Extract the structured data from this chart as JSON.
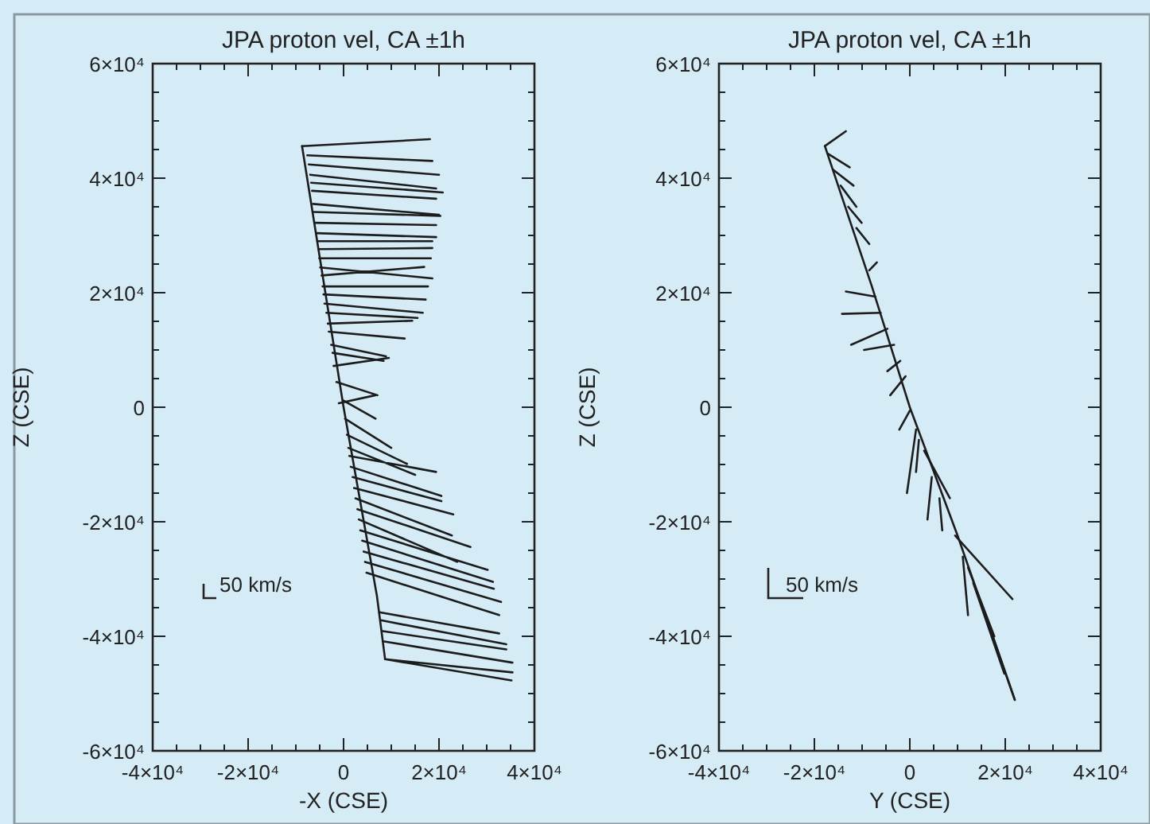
{
  "chart_data": [
    {
      "type": "line",
      "title": "JPA proton vel, CA ±1h",
      "xlabel": "-X (CSE)",
      "ylabel": "Z (CSE)",
      "xlim": [
        -40000,
        40000
      ],
      "ylim": [
        -60000,
        60000
      ],
      "xticks": [
        {
          "value": -40000,
          "label": "-4×10⁴"
        },
        {
          "value": -35000,
          "label": null
        },
        {
          "value": -30000,
          "label": null
        },
        {
          "value": -25000,
          "label": null
        },
        {
          "value": -20000,
          "label": "-2×10⁴"
        },
        {
          "value": -15000,
          "label": null
        },
        {
          "value": -10000,
          "label": null
        },
        {
          "value": -5000,
          "label": null
        },
        0,
        {
          "value": 5000,
          "label": null
        },
        {
          "value": 10000,
          "label": null
        },
        {
          "value": 15000,
          "label": null
        },
        {
          "value": 20000,
          "label": "2×10⁴"
        },
        {
          "value": 25000,
          "label": null
        },
        {
          "value": 30000,
          "label": null
        },
        {
          "value": 35000,
          "label": null
        },
        {
          "value": 40000,
          "label": "4×10⁴"
        }
      ],
      "yticks": [
        {
          "value": -60000,
          "label": "-6×10⁴"
        },
        {
          "value": -55000,
          "label": null
        },
        {
          "value": -50000,
          "label": null
        },
        {
          "value": -45000,
          "label": null
        },
        {
          "value": -40000,
          "label": "-4×10⁴"
        },
        {
          "value": -35000,
          "label": null
        },
        {
          "value": -30000,
          "label": null
        },
        {
          "value": -25000,
          "label": null
        },
        {
          "value": -20000,
          "label": "-2×10⁴"
        },
        {
          "value": -15000,
          "label": null
        },
        {
          "value": -10000,
          "label": null
        },
        {
          "value": -5000,
          "label": null
        },
        0,
        {
          "value": 5000,
          "label": null
        },
        {
          "value": 10000,
          "label": null
        },
        {
          "value": 15000,
          "label": null
        },
        {
          "value": 20000,
          "label": "2×10⁴"
        },
        {
          "value": 25000,
          "label": null
        },
        {
          "value": 30000,
          "label": null
        },
        {
          "value": 35000,
          "label": null
        },
        {
          "value": 40000,
          "label": "4×10⁴"
        },
        {
          "value": 45000,
          "label": null
        },
        {
          "value": 50000,
          "label": null
        },
        {
          "value": 55000,
          "label": null
        },
        {
          "value": 60000,
          "label": "6×10⁴"
        }
      ],
      "annotations": [
        "50 km/s"
      ],
      "series": [
        {
          "color": "#1c1c1c",
          "x": [
            -8700,
            0,
            7000,
            8700
          ],
          "values": [
            45600,
            0,
            -33000,
            -44000
          ]
        },
        {
          "color": "#1c1c1c",
          "x": [
            -8700,
            18100,
            null,
            -7600,
            18600,
            null,
            -7300,
            20000,
            null,
            -7000,
            19400,
            null,
            -6800,
            20800,
            null,
            -6600,
            19400,
            null,
            -6400,
            20000,
            null,
            -6200,
            20300,
            null,
            -6000,
            19400,
            null,
            -5700,
            19400,
            null,
            -5500,
            18600,
            null,
            -5300,
            18600,
            null,
            -5100,
            18300,
            null,
            -4900,
            18600,
            null,
            -4600,
            16900,
            null,
            -4400,
            17700,
            null,
            -4200,
            17200,
            null,
            -4000,
            16600,
            null,
            -3600,
            15500,
            null,
            -3300,
            14400,
            null,
            -3100,
            12800,
            null,
            -2600,
            8900,
            null,
            -2300,
            8400,
            null,
            -2100,
            9500,
            null,
            -1500,
            7100,
            null,
            -1000,
            6700,
            null,
            -100,
            6700,
            null,
            300,
            10000,
            null,
            700,
            13300,
            null,
            1000,
            15000,
            null,
            1200,
            19400,
            null,
            1500,
            20500,
            null,
            1900,
            20500,
            null,
            2200,
            23000,
            null,
            2500,
            22700,
            null,
            2900,
            26600,
            null,
            3200,
            23800,
            null,
            3500,
            30200,
            null,
            3900,
            31300,
            null,
            4200,
            31500,
            null,
            4500,
            33000,
            null,
            4800,
            32600,
            null,
            7500,
            32600,
            null,
            7800,
            34100,
            null,
            8200,
            34100,
            null,
            8500,
            35400,
            null,
            8700,
            35400,
            null,
            8700,
            35200
          ],
          "values": [
            45600,
            46800,
            null,
            44000,
            43000,
            null,
            42400,
            40600,
            null,
            40600,
            38200,
            null,
            39200,
            37500,
            null,
            37800,
            36400,
            null,
            35500,
            33600,
            null,
            34100,
            33400,
            null,
            32200,
            31800,
            null,
            30400,
            29700,
            null,
            29000,
            29000,
            null,
            27600,
            27800,
            null,
            26000,
            26000,
            null,
            24400,
            22500,
            null,
            23000,
            24500,
            null,
            21100,
            21100,
            null,
            19700,
            18800,
            null,
            18100,
            16500,
            null,
            16500,
            15600,
            null,
            14600,
            15100,
            null,
            13200,
            12000,
            null,
            10900,
            8900,
            null,
            9500,
            8100,
            null,
            7200,
            8600,
            null,
            4400,
            2100,
            null,
            700,
            2100,
            null,
            1200,
            -2000,
            null,
            -2000,
            -7100,
            null,
            -4800,
            -9900,
            null,
            -7100,
            -11800,
            null,
            -8500,
            -11300,
            null,
            -10400,
            -15500,
            null,
            -12200,
            -16400,
            null,
            -14100,
            -18700,
            null,
            -15900,
            -22400,
            null,
            -17800,
            -24400,
            null,
            -19600,
            -27000,
            null,
            -21500,
            -28400,
            null,
            -23300,
            -30500,
            null,
            -25200,
            -31700,
            null,
            -27000,
            -34000,
            null,
            -28900,
            -36300,
            null,
            -35800,
            -39500,
            null,
            -37200,
            -41400,
            null,
            -39100,
            -42300,
            null,
            -40900,
            -44600,
            null,
            -44000,
            -46300,
            null,
            -44000,
            -47700
          ]
        }
      ]
    },
    {
      "type": "line",
      "title": "JPA proton vel, CA ±1h",
      "xlabel": "Y (CSE)",
      "ylabel": "Z (CSE)",
      "xlim": [
        -40000,
        40000
      ],
      "ylim": [
        -60000,
        60000
      ],
      "xticks": [
        {
          "value": -40000,
          "label": "-4×10⁴"
        },
        {
          "value": -35000,
          "label": null
        },
        {
          "value": -30000,
          "label": null
        },
        {
          "value": -25000,
          "label": null
        },
        {
          "value": -20000,
          "label": "-2×10⁴"
        },
        {
          "value": -15000,
          "label": null
        },
        {
          "value": -10000,
          "label": null
        },
        {
          "value": -5000,
          "label": null
        },
        0,
        {
          "value": 5000,
          "label": null
        },
        {
          "value": 10000,
          "label": null
        },
        {
          "value": 15000,
          "label": null
        },
        {
          "value": 20000,
          "label": "2×10⁴"
        },
        {
          "value": 25000,
          "label": null
        },
        {
          "value": 30000,
          "label": null
        },
        {
          "value": 35000,
          "label": null
        },
        {
          "value": 40000,
          "label": "4×10⁴"
        }
      ],
      "yticks": [
        {
          "value": -60000,
          "label": "-6×10⁴"
        },
        {
          "value": -55000,
          "label": null
        },
        {
          "value": -50000,
          "label": null
        },
        {
          "value": -45000,
          "label": null
        },
        {
          "value": -40000,
          "label": "-4×10⁴"
        },
        {
          "value": -35000,
          "label": null
        },
        {
          "value": -30000,
          "label": null
        },
        {
          "value": -25000,
          "label": null
        },
        {
          "value": -20000,
          "label": "-2×10⁴"
        },
        {
          "value": -15000,
          "label": null
        },
        {
          "value": -10000,
          "label": null
        },
        {
          "value": -5000,
          "label": null
        },
        0,
        {
          "value": 5000,
          "label": null
        },
        {
          "value": 10000,
          "label": null
        },
        {
          "value": 15000,
          "label": null
        },
        {
          "value": 20000,
          "label": "2×10⁴"
        },
        {
          "value": 25000,
          "label": null
        },
        {
          "value": 30000,
          "label": null
        },
        {
          "value": 35000,
          "label": null
        },
        {
          "value": 40000,
          "label": "4×10⁴"
        },
        {
          "value": 45000,
          "label": null
        },
        {
          "value": 50000,
          "label": null
        },
        {
          "value": 55000,
          "label": null
        },
        {
          "value": 60000,
          "label": "6×10⁴"
        }
      ],
      "annotations": [
        "50 km/s"
      ],
      "series": [
        {
          "color": "#1c1c1c",
          "x": [
            -17800,
            -7950,
            0,
            10000,
            22000
          ],
          "values": [
            45600,
            21100,
            0,
            -22400,
            -51100
          ]
        },
        {
          "color": "#1c1c1c",
          "x": [
            -17800,
            -13400,
            null,
            -17200,
            -12600,
            null,
            -16100,
            -11800,
            null,
            -14500,
            -11200,
            null,
            -12900,
            -10100,
            null,
            -11200,
            -8500,
            null,
            -8500,
            -6900,
            null,
            -7200,
            -13400,
            null,
            -6100,
            -14200,
            null,
            -4700,
            -12300,
            null,
            -3300,
            -9600,
            null,
            -2000,
            -4700,
            null,
            -900,
            -4100,
            null,
            0,
            -2200,
            null,
            1300,
            -600,
            null,
            1900,
            1300,
            null,
            3000,
            8400,
            null,
            4600,
            3700,
            null,
            6200,
            6800,
            null,
            9500,
            21500,
            null,
            11100,
            12200,
            null,
            12200,
            17700,
            null,
            13300,
            19800,
            null,
            15500,
            22000
          ],
          "values": [
            45600,
            48200,
            null,
            44300,
            41900,
            null,
            41500,
            38700,
            null,
            38700,
            35000,
            null,
            35000,
            32200,
            null,
            31300,
            28500,
            null,
            23900,
            25300,
            null,
            19300,
            20200,
            null,
            16500,
            16300,
            null,
            13700,
            10900,
            null,
            10900,
            10000,
            null,
            8100,
            6300,
            null,
            5400,
            2100,
            null,
            -600,
            -3900,
            null,
            -3900,
            -15000,
            null,
            -5700,
            -11300,
            null,
            -7600,
            -15900,
            null,
            -12200,
            -19600,
            null,
            -15900,
            -21500,
            null,
            -22400,
            -33500,
            null,
            -26100,
            -36300,
            null,
            -28000,
            -40000,
            null,
            -30700,
            -46500,
            null,
            -35400,
            -51100
          ]
        }
      ]
    }
  ]
}
